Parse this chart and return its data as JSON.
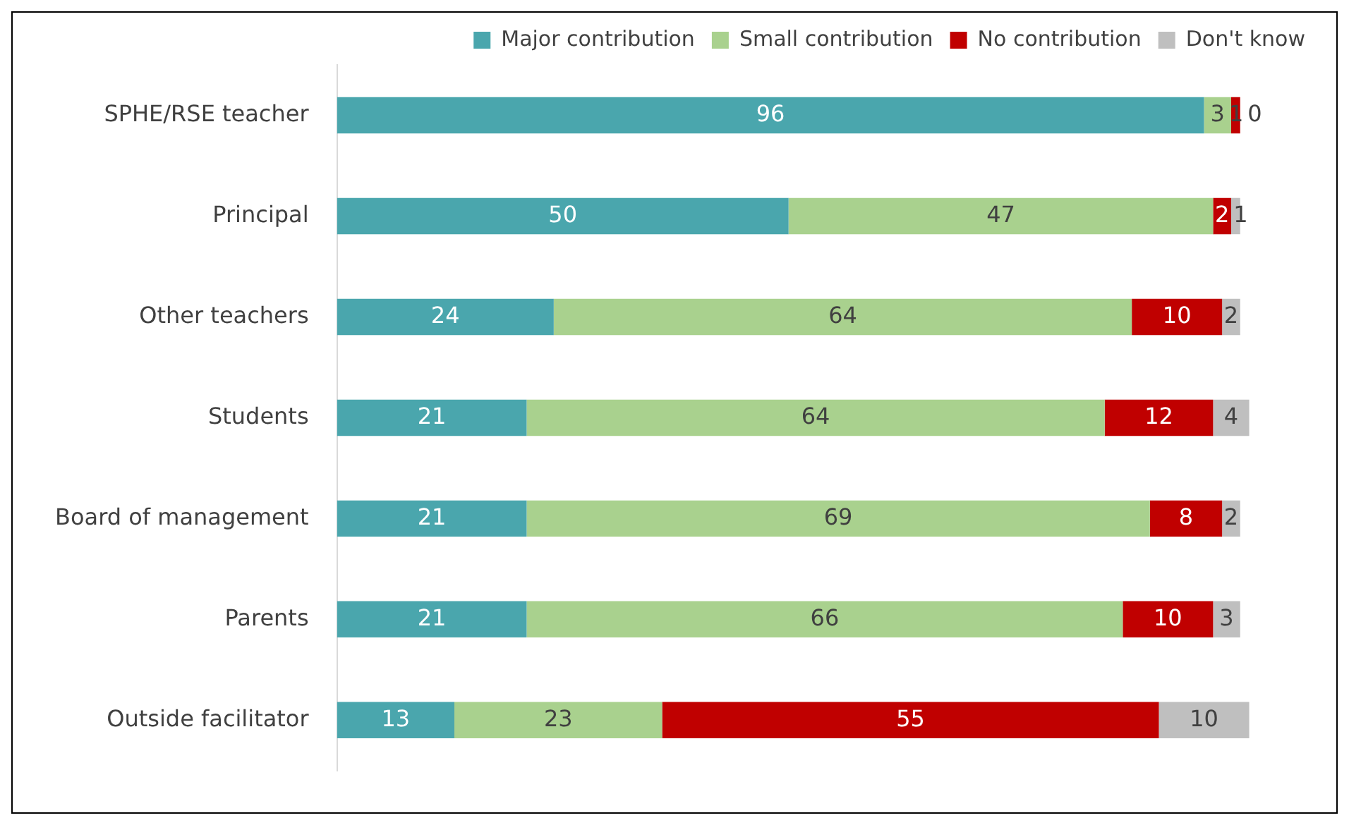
{
  "chart_data": {
    "type": "bar",
    "orientation": "horizontal",
    "stacked": true,
    "data_labels": true,
    "legend": "top right",
    "categories": [
      "SPHE/RSE teacher",
      "Principal",
      "Other teachers",
      "Students",
      "Board of management",
      "Parents",
      "Outside facilitator"
    ],
    "series": [
      {
        "name": "Major contribution",
        "color": "#4aa6ad",
        "values": [
          96,
          50,
          24,
          21,
          21,
          21,
          13
        ]
      },
      {
        "name": "Small contribution",
        "color": "#a9d18e",
        "values": [
          3,
          47,
          64,
          64,
          69,
          66,
          23
        ]
      },
      {
        "name": "No contribution",
        "color": "#c00000",
        "values": [
          1,
          2,
          10,
          12,
          8,
          10,
          55
        ]
      },
      {
        "name": "Don't know",
        "color": "#bfbfbf",
        "values": [
          0,
          1,
          2,
          4,
          2,
          3,
          10
        ]
      }
    ]
  }
}
